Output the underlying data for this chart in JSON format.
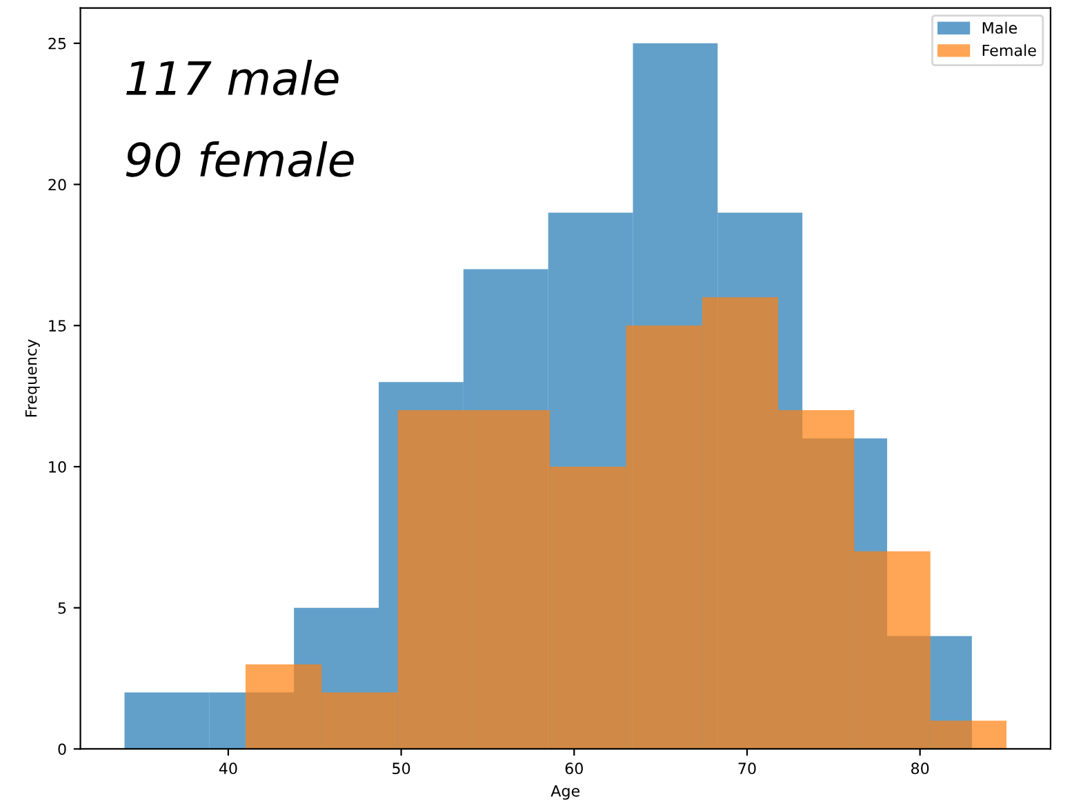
{
  "chart_data": {
    "type": "bar",
    "xlabel": "Age",
    "ylabel": "Frequency",
    "series": [
      {
        "name": "Male",
        "color": "#1f77b4",
        "x": [
          36.45,
          41.35,
          46.25,
          51.15,
          56.05,
          60.95,
          65.85,
          70.75,
          75.65,
          80.55
        ],
        "values": [
          2,
          2,
          5,
          13,
          17,
          19,
          25,
          19,
          11,
          4
        ]
      },
      {
        "name": "Female",
        "color": "#ff7f0e",
        "x": [
          43.2,
          47.6,
          52.0,
          56.4,
          60.8,
          65.2,
          69.6,
          74.0,
          78.4,
          82.8
        ],
        "values": [
          3,
          2,
          12,
          12,
          10,
          15,
          16,
          12,
          7,
          1
        ]
      }
    ],
    "xlim": [
      31.45,
      87.55
    ],
    "xticks": [
      40,
      50,
      60,
      70,
      80
    ],
    "ylim": [
      0,
      26.25
    ],
    "yticks": [
      0,
      5,
      10,
      15,
      20,
      25
    ],
    "legend": "top right",
    "annotations": [
      "117 male",
      "90 female"
    ]
  }
}
